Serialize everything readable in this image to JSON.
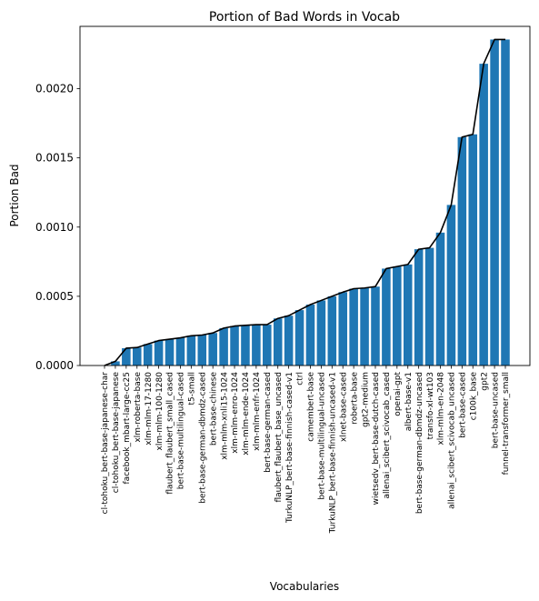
{
  "chart_data": {
    "type": "bar",
    "title": "Portion of Bad Words in Vocab",
    "xlabel": "Vocabularies",
    "ylabel": "Portion Bad",
    "ylim": [
      0,
      0.00245
    ],
    "yticks": [
      "0.0000",
      "0.0005",
      "0.0010",
      "0.0015",
      "0.0020"
    ],
    "ytick_values": [
      0,
      0.0005,
      0.001,
      0.0015,
      0.002
    ],
    "grid": false,
    "bar_color": "#1f77b4",
    "line_color": "#000000",
    "categories": [
      "cl-tohoku_bert-base-japanese-char",
      "cl-tohoku_bert-base-japanese",
      "facebook_mbart-large-cc25",
      "xlm-roberta-base",
      "xlm-mlm-17-1280",
      "xlm-mlm-100-1280",
      "flaubert_flaubert_small_cased",
      "bert-base-multilingual-cased",
      "t5-small",
      "bert-base-german-dbmdz-cased",
      "bert-base-chinese",
      "xlm-mlm-xnli15-1024",
      "xlm-mlm-enro-1024",
      "xlm-mlm-ende-1024",
      "xlm-mlm-enfr-1024",
      "bert-base-german-cased",
      "flaubert_flaubert_base_uncased",
      "TurkuNLP_bert-base-finnish-cased-v1",
      "ctrl",
      "camembert-base",
      "bert-base-multilingual-uncased",
      "TurkuNLP_bert-base-finnish-uncased-v1",
      "xlnet-base-cased",
      "roberta-base",
      "gpt2-medium",
      "wietsedv_bert-base-dutch-cased",
      "allenai_scibert_scivocab_cased",
      "openai-gpt",
      "albert-base-v1",
      "bert-base-german-dbmdz-uncased",
      "transfo-xl-wt103",
      "xlm-mlm-en-2048",
      "allenai_scibert_scivocab_uncased",
      "bert-base-cased",
      "c100k_base",
      "gpt2",
      "bert-base-uncased",
      "funnel-transformer_small"
    ],
    "values": [
      0.0,
      3e-05,
      0.000125,
      0.00013,
      0.000155,
      0.00018,
      0.00019,
      0.0002,
      0.000215,
      0.00022,
      0.000235,
      0.00027,
      0.000285,
      0.00029,
      0.000295,
      0.000295,
      0.00034,
      0.00036,
      0.0004,
      0.00044,
      0.00047,
      0.0005,
      0.00053,
      0.000555,
      0.00056,
      0.00057,
      0.0007,
      0.000715,
      0.00073,
      0.00084,
      0.00085,
      0.00096,
      0.00116,
      0.00165,
      0.00167,
      0.00218,
      0.002355,
      0.002355
    ]
  }
}
